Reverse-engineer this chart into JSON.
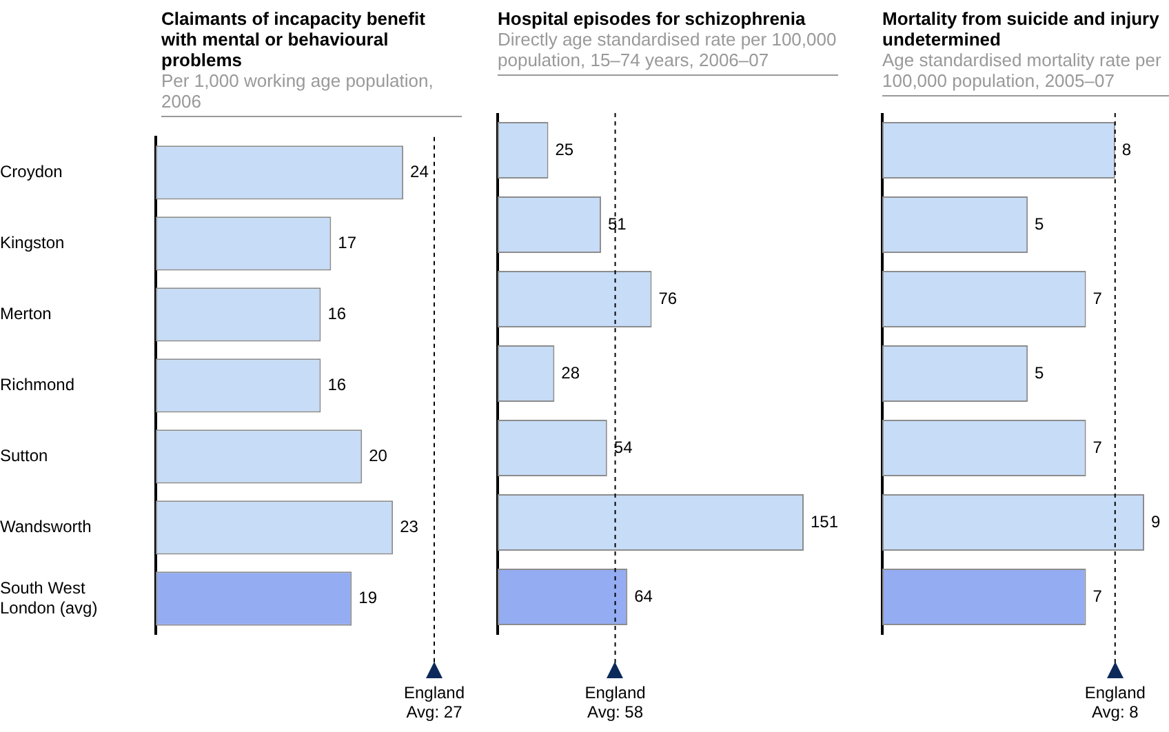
{
  "chart_data": [
    {
      "type": "bar",
      "orientation": "horizontal",
      "title": "Claimants of incapacity benefit with mental or behavioural problems",
      "subtitle": "Per 1,000 working age population, 2006",
      "categories": [
        "Croydon",
        "Kingston",
        "Merton",
        "Richmond",
        "Sutton",
        "Wandsworth",
        "South West London (avg)"
      ],
      "values": [
        24,
        17,
        16,
        16,
        20,
        23,
        19
      ],
      "colors": [
        "#c6dcf7",
        "#c6dcf7",
        "#c6dcf7",
        "#c6dcf7",
        "#c6dcf7",
        "#c6dcf7",
        "#94acf2"
      ],
      "data_labels": true,
      "tick_labels": "y",
      "legend": false,
      "ref_lines": [
        {
          "axis": "x",
          "value": 27,
          "label": "England Avg: 27",
          "line_style": "dashed",
          "color": "#000000"
        }
      ]
    },
    {
      "type": "bar",
      "orientation": "horizontal",
      "title": "Hospital episodes for schizophrenia",
      "subtitle": "Directly age standardised rate per 100,000 population, 15–74 years, 2006–07",
      "categories": [
        null,
        null,
        null,
        null,
        null,
        null,
        null
      ],
      "values": [
        25,
        51,
        76,
        28,
        54,
        151,
        64
      ],
      "colors": [
        "#c6dcf7",
        "#c6dcf7",
        "#c6dcf7",
        "#c6dcf7",
        "#c6dcf7",
        "#c6dcf7",
        "#94acf2"
      ],
      "data_labels": true,
      "tick_labels": false,
      "legend": false,
      "ref_lines": [
        {
          "axis": "x",
          "value": 58,
          "label": "England Avg: 58",
          "line_style": "dashed",
          "color": "#000000"
        }
      ]
    },
    {
      "type": "bar",
      "orientation": "horizontal",
      "title": "Mortality from suicide and injury undetermined",
      "subtitle": "Age standardised mortality rate per 100,000 population, 2005–07",
      "categories": [
        null,
        null,
        null,
        null,
        null,
        null,
        null
      ],
      "values": [
        8,
        5,
        7,
        5,
        7,
        9,
        7
      ],
      "colors": [
        "#c6dcf7",
        "#c6dcf7",
        "#c6dcf7",
        "#c6dcf7",
        "#c6dcf7",
        "#c6dcf7",
        "#94acf2"
      ],
      "data_labels": true,
      "tick_labels": false,
      "legend": false,
      "ref_lines": [
        {
          "axis": "x",
          "value": 8,
          "label": "England Avg: 8",
          "line_style": "dashed",
          "color": "#000000"
        }
      ]
    }
  ]
}
